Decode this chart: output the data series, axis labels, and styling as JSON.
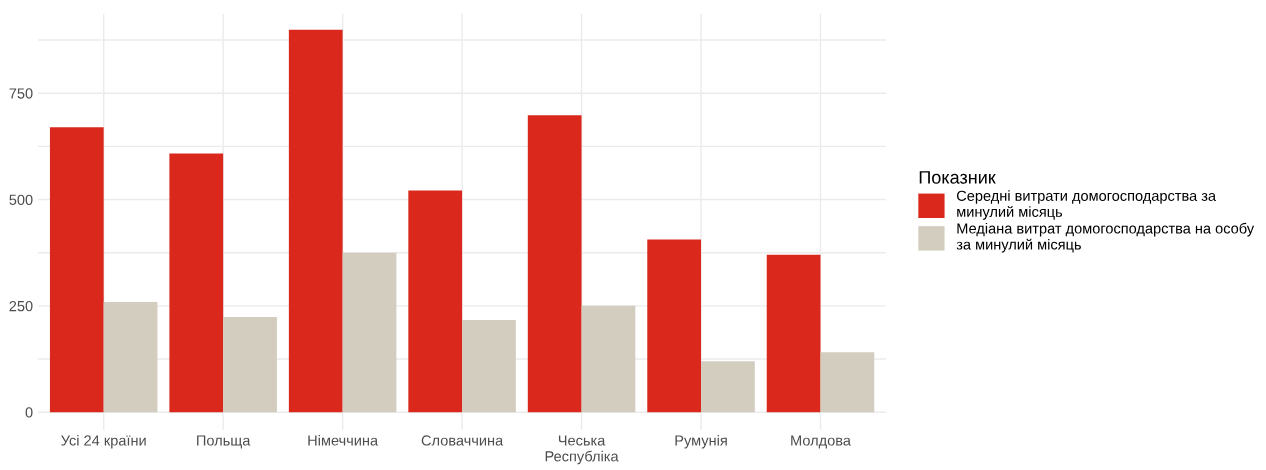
{
  "chart_data": {
    "type": "bar",
    "categories": [
      "Усі 24 країни",
      "Польща",
      "Німеччина",
      "Словаччина",
      "Чеська\nРеспубліка",
      "Румунія",
      "Молдова"
    ],
    "series": [
      {
        "name": "Середні витрати домогосподарства за\nминулий місяць",
        "color": "#da291c",
        "values": [
          670,
          608,
          899,
          521,
          698,
          406,
          370
        ]
      },
      {
        "name": "Медіана витрат домогосподарства на особу\nза минулий місяць",
        "color": "#d3cdbf",
        "values": [
          259,
          224,
          375,
          217,
          250,
          120,
          141
        ]
      }
    ],
    "legend_title": "Показник",
    "ylim": [
      -42,
      936
    ],
    "yticks": [
      0,
      {
        "value": 125,
        "label": null
      },
      250,
      {
        "value": 375,
        "label": null
      },
      500,
      {
        "value": 625,
        "label": null
      },
      750,
      {
        "value": 875,
        "label": null
      }
    ],
    "grid": true,
    "legend": "right"
  }
}
